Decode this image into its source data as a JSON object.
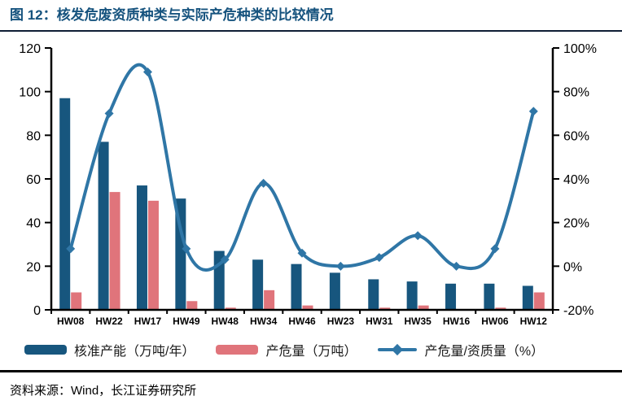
{
  "header": {
    "title": "图 12：核发危废资质种类与实际产危种类的比较情况"
  },
  "source": {
    "text": "资料来源：Wind，长江证券研究所"
  },
  "colors": {
    "title_blue": "#16537e",
    "bar_blue": "#17567e",
    "bar_pink": "#e0747b",
    "line_blue": "#2f76a6",
    "axis_black": "#000000"
  },
  "legend": [
    {
      "label": "核准产能（万吨/年）",
      "type": "bar",
      "color": "#17567e"
    },
    {
      "label": "产危量（万吨）",
      "type": "bar",
      "color": "#e0747b"
    },
    {
      "label": "产危量/资质量（%）",
      "type": "line",
      "color": "#2f76a6"
    }
  ],
  "chart_data": {
    "type": "combo-bar-line",
    "title": "核发危废资质种类与实际产危种类的比较情况",
    "categories": [
      "HW08",
      "HW22",
      "HW17",
      "HW49",
      "HW48",
      "HW34",
      "HW46",
      "HW23",
      "HW31",
      "HW35",
      "HW16",
      "HW06",
      "HW12"
    ],
    "series": [
      {
        "name": "核准产能（万吨/年）",
        "type": "bar",
        "axis": "left",
        "color": "#17567e",
        "values": [
          97,
          77,
          57,
          51,
          27,
          23,
          21,
          17,
          14,
          13,
          12,
          12,
          11
        ]
      },
      {
        "name": "产危量（万吨）",
        "type": "bar",
        "axis": "left",
        "color": "#e0747b",
        "values": [
          8,
          54,
          50,
          4,
          1,
          9,
          2,
          0,
          1,
          2,
          0,
          1,
          8
        ]
      },
      {
        "name": "产危量/资质量（%）",
        "type": "line",
        "axis": "right",
        "color": "#2f76a6",
        "values": [
          8,
          70,
          89,
          8,
          3,
          38,
          6,
          0,
          4,
          14,
          0,
          8,
          71
        ]
      }
    ],
    "left_axis": {
      "min": 0,
      "max": 120,
      "ticks": [
        0,
        20,
        40,
        60,
        80,
        100,
        120
      ]
    },
    "right_axis": {
      "min": -20,
      "max": 100,
      "ticks": [
        "-20%",
        "0%",
        "20%",
        "40%",
        "60%",
        "80%",
        "100%"
      ]
    },
    "grid": "off",
    "legend_position": "bottom"
  }
}
